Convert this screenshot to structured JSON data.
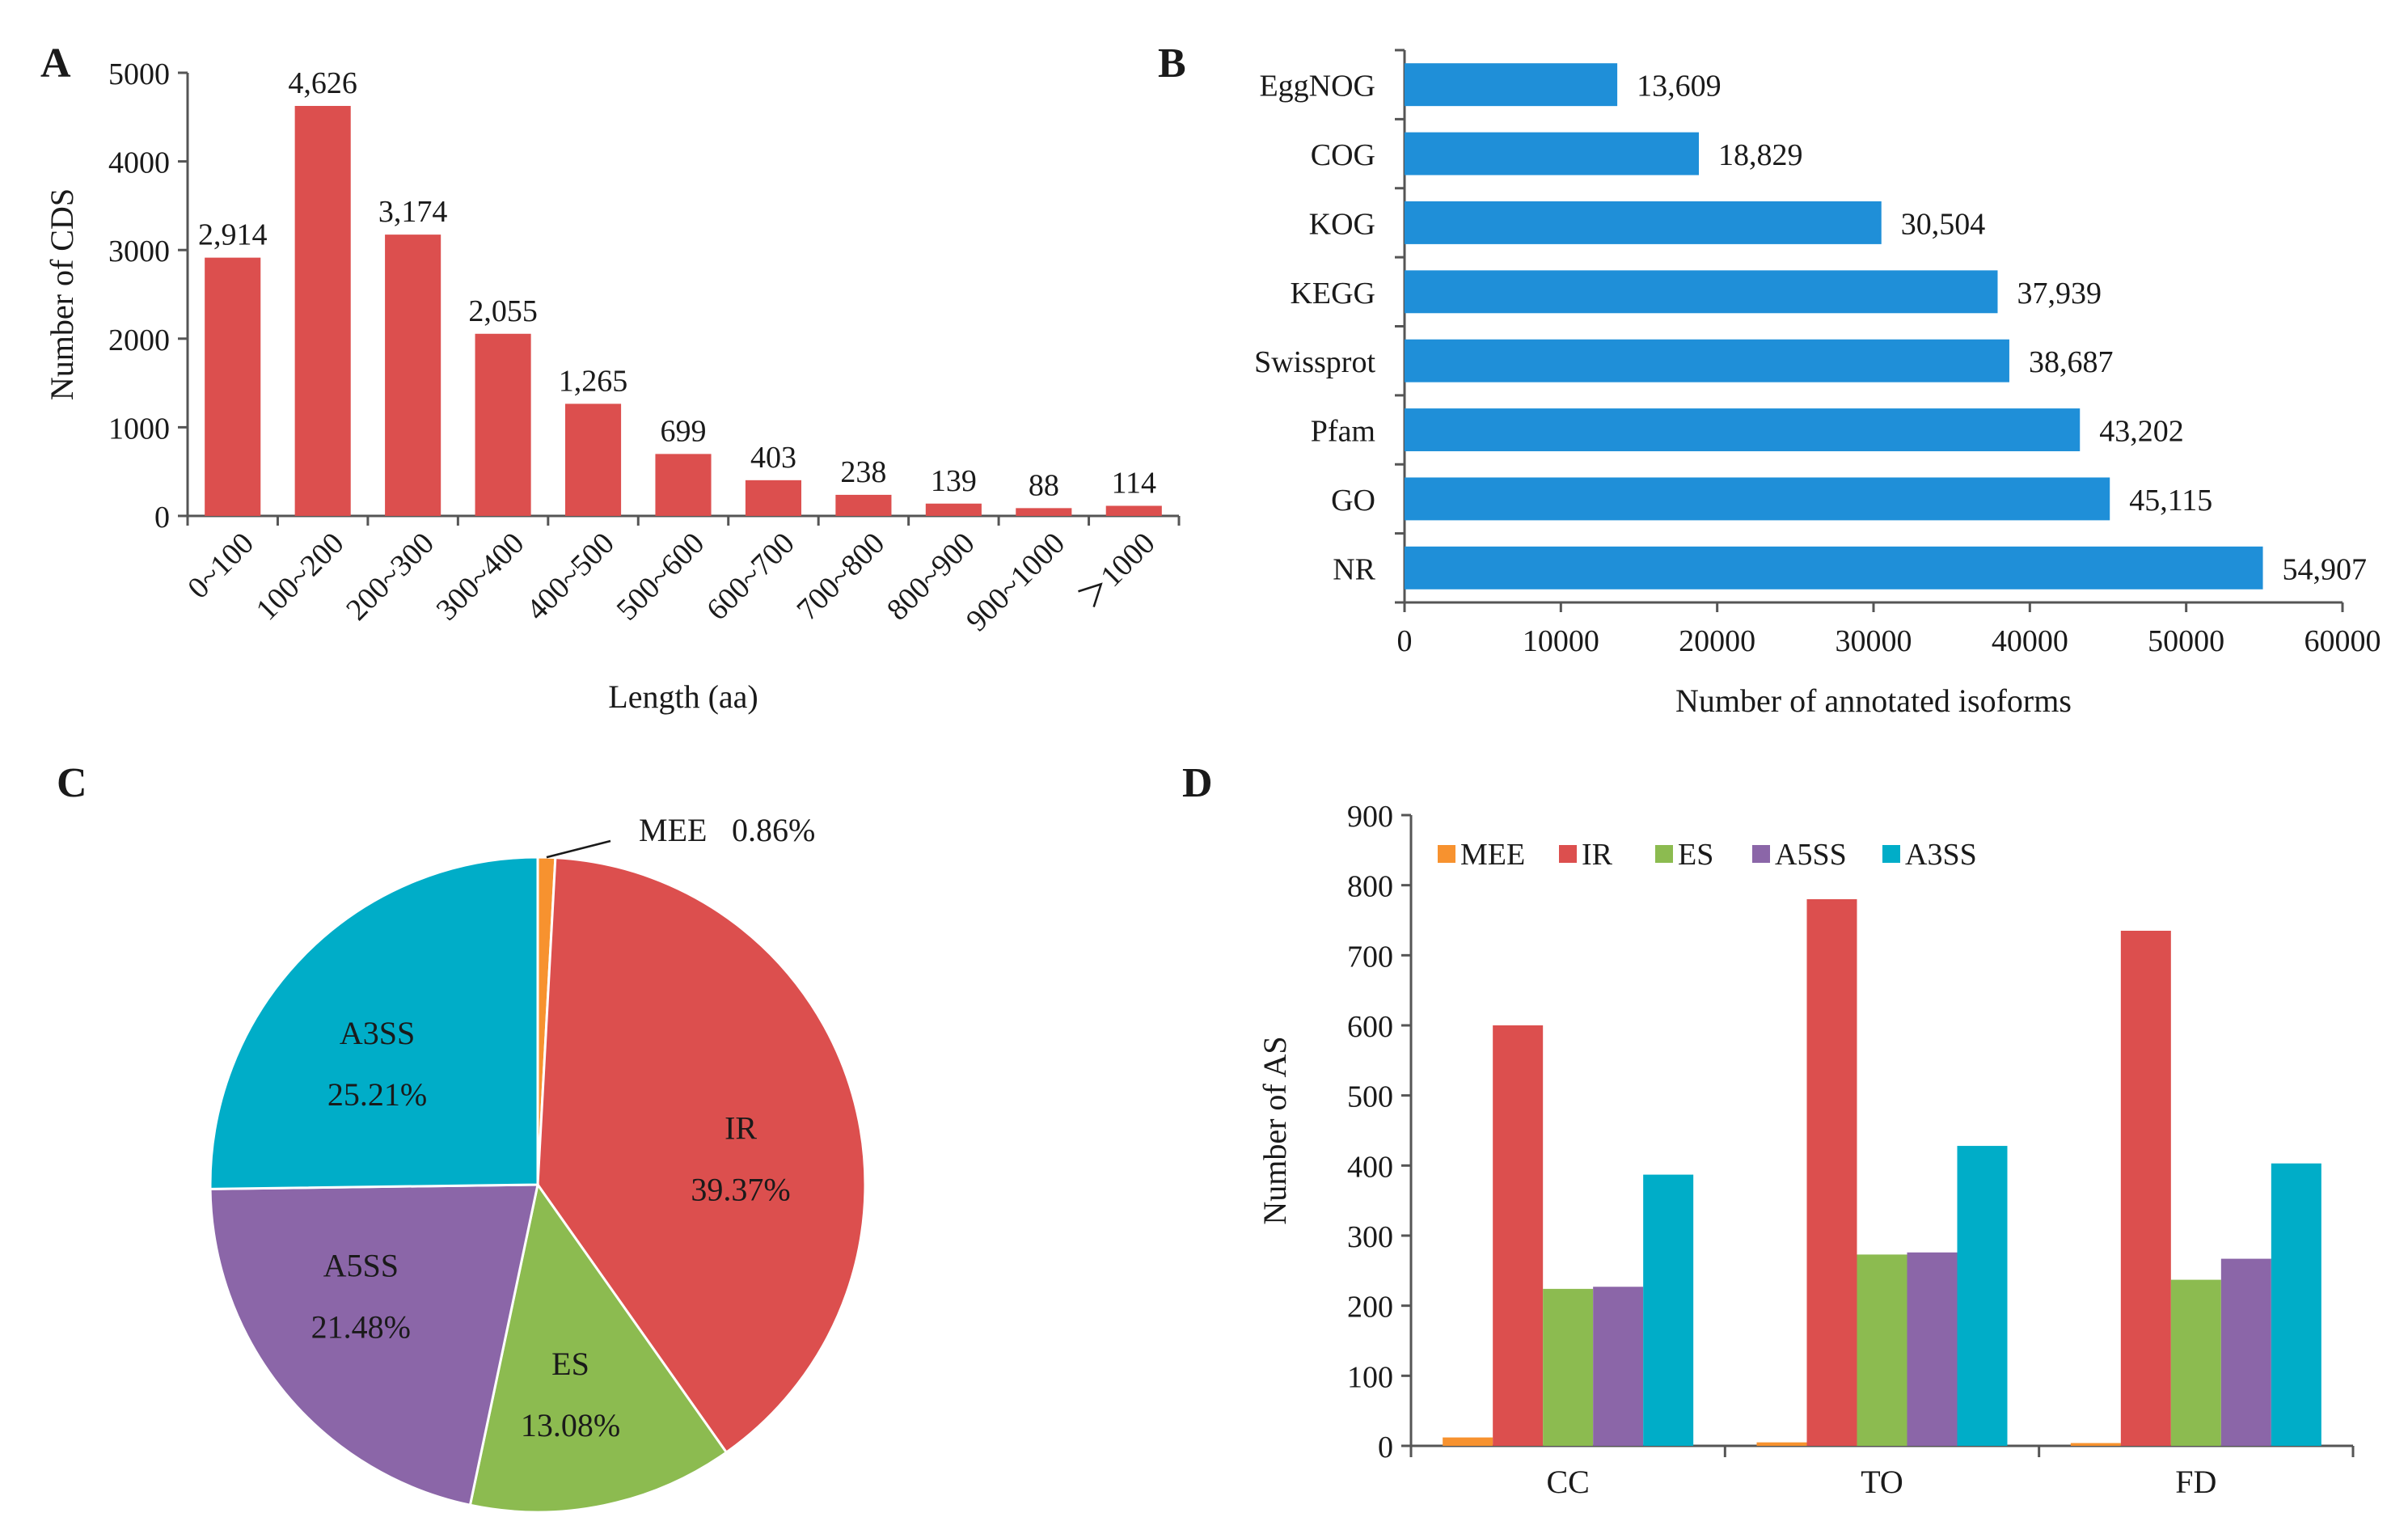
{
  "chart_data": [
    {
      "panel": "A",
      "type": "bar",
      "title": "",
      "categories": [
        "0~100",
        "100~200",
        "200~300",
        "300~400",
        "400~500",
        "500~600",
        "600~700",
        "700~800",
        "800~900",
        "900~1000",
        "＞1000"
      ],
      "values": [
        2914,
        4626,
        3174,
        2055,
        1265,
        699,
        403,
        238,
        139,
        88,
        114
      ],
      "data_labels": [
        "2,914",
        "4,626",
        "3,174",
        "2,055",
        "1,265",
        "699",
        "403",
        "238",
        "139",
        "88",
        "114"
      ],
      "xlabel": "Length (aa)",
      "ylabel": "Number of CDS",
      "ylim": [
        0,
        5000
      ],
      "yticks": [
        "0",
        "1000",
        "2000",
        "3000",
        "4000",
        "5000"
      ],
      "color": "#dc4f4e"
    },
    {
      "panel": "B",
      "type": "bar",
      "orientation": "horizontal",
      "title": "",
      "categories": [
        "EggNOG",
        "COG",
        "KOG",
        "KEGG",
        "Swissprot",
        "Pfam",
        "GO",
        "NR"
      ],
      "values": [
        13609,
        18829,
        30504,
        37939,
        38687,
        43202,
        45115,
        54907
      ],
      "data_labels": [
        "13,609",
        "18,829",
        "30,504",
        "37,939",
        "38,687",
        "43,202",
        "45,115",
        "54,907"
      ],
      "xlabel": "Number of annotated isoforms",
      "ylabel": "",
      "xlim": [
        0,
        60000
      ],
      "xticks": [
        "0",
        "10000",
        "20000",
        "30000",
        "40000",
        "50000",
        "60000"
      ],
      "color": "#1f8fd8"
    },
    {
      "panel": "C",
      "type": "pie",
      "title": "",
      "labels": [
        "MEE",
        "IR",
        "ES",
        "A5SS",
        "A3SS"
      ],
      "values": [
        0.86,
        39.37,
        13.08,
        21.48,
        25.21
      ],
      "value_labels": [
        "0.86%",
        "39.37%",
        "13.08%",
        "21.48%",
        "25.21%"
      ],
      "colors": [
        "#f7922f",
        "#dc4f4e",
        "#8cbb50",
        "#8b66a8",
        "#00adc8"
      ]
    },
    {
      "panel": "D",
      "type": "bar",
      "title": "",
      "categories": [
        "CC",
        "TO",
        "FD"
      ],
      "series": [
        {
          "name": "MEE",
          "values": [
            12,
            5,
            4
          ],
          "color": "#f7922f"
        },
        {
          "name": "IR",
          "values": [
            600,
            780,
            735
          ],
          "color": "#dc4f4e"
        },
        {
          "name": "ES",
          "values": [
            224,
            273,
            237
          ],
          "color": "#8cbb50"
        },
        {
          "name": "A5SS",
          "values": [
            227,
            276,
            267
          ],
          "color": "#8b66a8"
        },
        {
          "name": "A3SS",
          "values": [
            387,
            428,
            403
          ],
          "color": "#00adc8"
        }
      ],
      "xlabel": "",
      "ylabel": "Number of AS",
      "ylim": [
        0,
        900
      ],
      "yticks": [
        "0",
        "100",
        "200",
        "300",
        "400",
        "500",
        "600",
        "700",
        "800",
        "900"
      ],
      "legend_position": "top"
    }
  ]
}
